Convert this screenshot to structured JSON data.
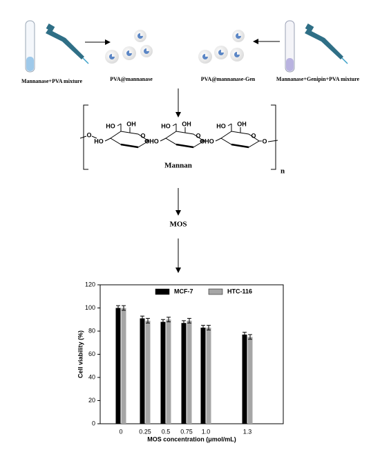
{
  "labels": {
    "left_mixture": "Mannanase+PVA mixture",
    "pva_mannanase": "PVA@mannanase",
    "pva_gen": "PVA@mannanase-Gen",
    "right_mixture": "Mannanase+Genipin+PVA mixture",
    "mannan": "Mannan",
    "n": "n",
    "mos": "MOS"
  },
  "molecule": {
    "units": [
      [
        "HO",
        "OH",
        "HO",
        "O"
      ],
      [
        "HO",
        "OH",
        "HO",
        "O"
      ],
      [
        "HO",
        "OH",
        "HO",
        "O"
      ]
    ],
    "links": [
      "O",
      "O",
      "O",
      "O"
    ]
  },
  "chart_data": {
    "type": "bar",
    "categories": [
      "0",
      "0.25",
      "0.5",
      "0.75",
      "1.0",
      "1.3"
    ],
    "series": [
      {
        "name": "MCF-7",
        "color": "#000000",
        "values": [
          100,
          91,
          88,
          87,
          83,
          77
        ],
        "errors": [
          2,
          2,
          2,
          2,
          2,
          2
        ]
      },
      {
        "name": "HTC-116",
        "color": "#a6a6a6",
        "values": [
          100,
          89,
          90,
          89,
          83,
          75
        ],
        "errors": [
          2,
          2,
          2,
          2,
          2,
          2
        ]
      }
    ],
    "xlabel": "MOS concentration (μmol/mL)",
    "ylabel": "Cell viability (%)",
    "ylim": [
      0,
      120
    ],
    "yticks": [
      0,
      20,
      40,
      60,
      80,
      100,
      120
    ],
    "legend": "top"
  }
}
